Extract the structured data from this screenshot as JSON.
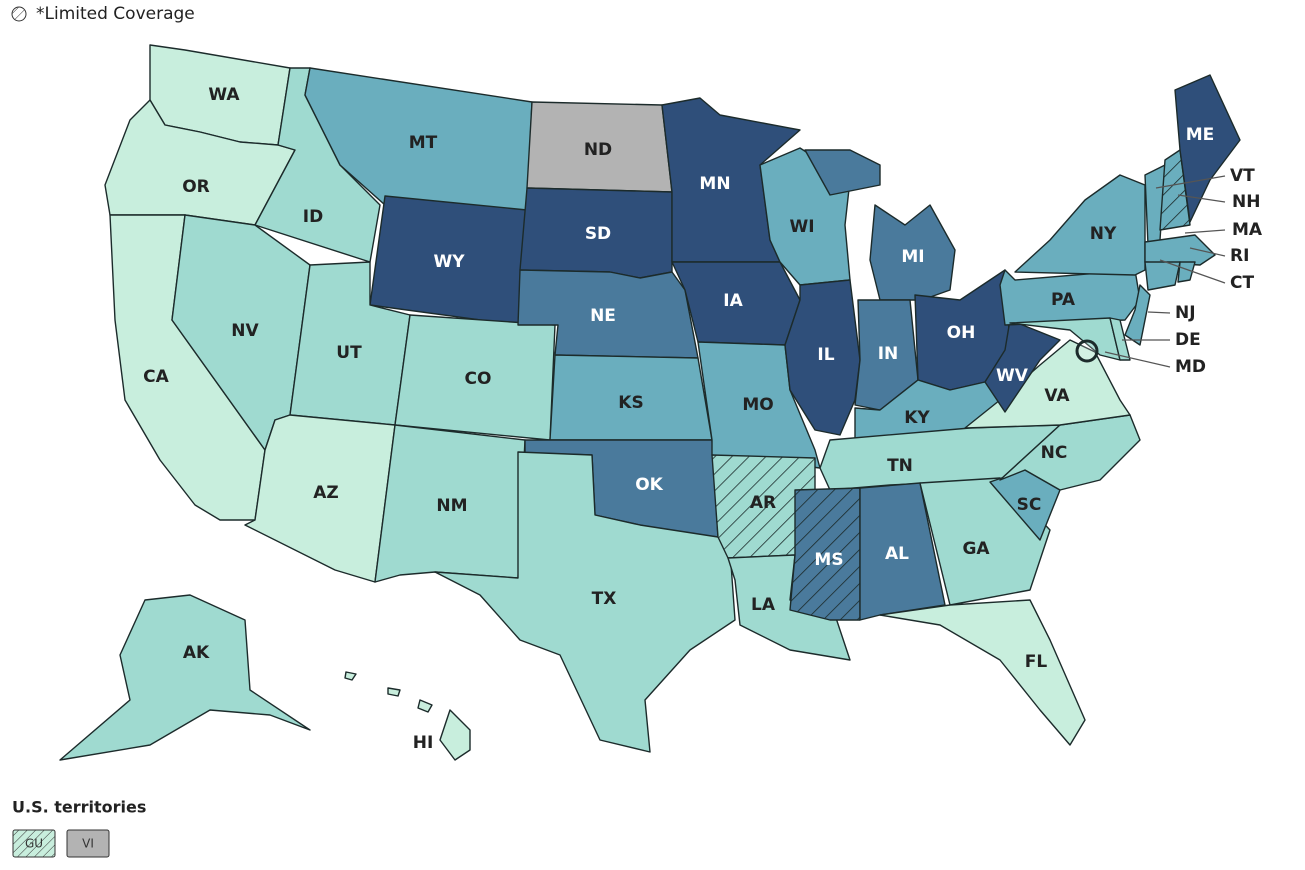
{
  "legend": {
    "note": "*Limited Coverage"
  },
  "states": [
    {
      "label": "WA",
      "color": "#c8eedd"
    },
    {
      "label": "OR",
      "color": "#c8eedd"
    },
    {
      "label": "CA",
      "color": "#c8eedd"
    },
    {
      "label": "ID",
      "color": "#9fdad0"
    },
    {
      "label": "NV",
      "color": "#9fdad0"
    },
    {
      "label": "MT",
      "color": "#6aaebe"
    },
    {
      "label": "WY",
      "color": "#2f4f7a"
    },
    {
      "label": "UT",
      "color": "#9fdad0"
    },
    {
      "label": "AZ",
      "color": "#c8eedd"
    },
    {
      "label": "CO",
      "color": "#9fdad0"
    },
    {
      "label": "NM",
      "color": "#9fdad0"
    },
    {
      "label": "ND",
      "color": "#b3b3b3"
    },
    {
      "label": "SD",
      "color": "#2f4f7a"
    },
    {
      "label": "NE",
      "color": "#4a7a9c"
    },
    {
      "label": "KS",
      "color": "#6aaebe"
    },
    {
      "label": "OK",
      "color": "#4a7a9c"
    },
    {
      "label": "TX",
      "color": "#9fdad0"
    },
    {
      "label": "MN",
      "color": "#2f4f7a"
    },
    {
      "label": "IA",
      "color": "#2f4f7a"
    },
    {
      "label": "MO",
      "color": "#6aaebe"
    },
    {
      "label": "AR",
      "color": "#9fdad0",
      "hatched": true
    },
    {
      "label": "LA",
      "color": "#9fdad0"
    },
    {
      "label": "WI",
      "color": "#6aaebe"
    },
    {
      "label": "IL",
      "color": "#2f4f7a"
    },
    {
      "label": "MI",
      "color": "#4a7a9c"
    },
    {
      "label": "IN",
      "color": "#4a7a9c"
    },
    {
      "label": "OH",
      "color": "#2f4f7a"
    },
    {
      "label": "KY",
      "color": "#6aaebe"
    },
    {
      "label": "TN",
      "color": "#9fdad0"
    },
    {
      "label": "MS",
      "color": "#4a7a9c",
      "hatched": true
    },
    {
      "label": "AL",
      "color": "#4a7a9c"
    },
    {
      "label": "GA",
      "color": "#9fdad0"
    },
    {
      "label": "FL",
      "color": "#c8eedd"
    },
    {
      "label": "SC",
      "color": "#6aaebe"
    },
    {
      "label": "NC",
      "color": "#9fdad0"
    },
    {
      "label": "VA",
      "color": "#c8eedd"
    },
    {
      "label": "WV",
      "color": "#2f4f7a"
    },
    {
      "label": "PA",
      "color": "#6aaebe"
    },
    {
      "label": "NY",
      "color": "#6aaebe"
    },
    {
      "label": "MD",
      "color": "#9fdad0"
    },
    {
      "label": "DE",
      "color": "#9fdad0"
    },
    {
      "label": "NJ",
      "color": "#6aaebe"
    },
    {
      "label": "VT",
      "color": "#6aaebe"
    },
    {
      "label": "NH",
      "color": "#6aaebe",
      "hatched": true
    },
    {
      "label": "ME",
      "color": "#2f4f7a"
    },
    {
      "label": "MA",
      "color": "#6aaebe"
    },
    {
      "label": "CT",
      "color": "#6aaebe"
    },
    {
      "label": "RI",
      "color": "#6aaebe"
    },
    {
      "label": "AK",
      "color": "#9fdad0"
    },
    {
      "label": "HI",
      "color": "#c8eedd"
    }
  ],
  "territories": {
    "title": "U.S. territories",
    "items": [
      {
        "label": "GU",
        "color": "#c8eedd",
        "hatched": true
      },
      {
        "label": "VI",
        "color": "#b3b3b3"
      }
    ]
  }
}
